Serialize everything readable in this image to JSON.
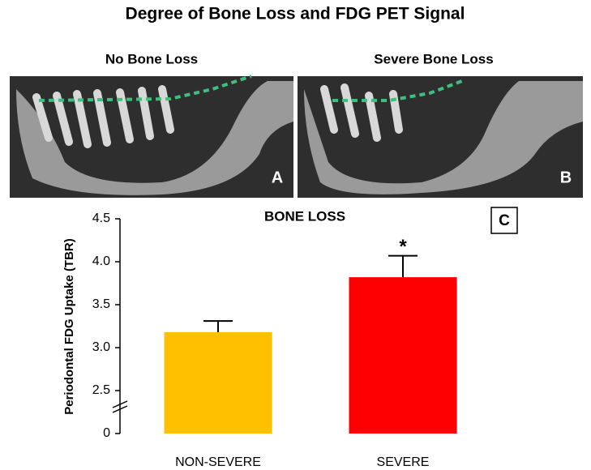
{
  "figure": {
    "title": "Degree of Bone Loss and FDG PET Signal",
    "panels": [
      {
        "title": "No Bone Loss",
        "label": "A"
      },
      {
        "title": "Severe Bone Loss",
        "label": "B"
      }
    ]
  },
  "chart_data": {
    "type": "bar",
    "title": "BONE LOSS",
    "panel_label": "C",
    "y_label": "Periodontal FDG Uptake (TBR)",
    "categories": [
      "NON-SEVERE",
      "SEVERE"
    ],
    "values": [
      3.18,
      3.82
    ],
    "errors": [
      0.13,
      0.25
    ],
    "colors": [
      "#ffc000",
      "#ff0000"
    ],
    "annotation": "*",
    "ylim": [
      0,
      4.5
    ],
    "y_break": 2.5,
    "yticks": [
      0,
      2.5,
      {
        "value": 3,
        "label": "3.0"
      },
      3.5,
      {
        "value": 4,
        "label": "4.0"
      },
      4.5
    ]
  }
}
